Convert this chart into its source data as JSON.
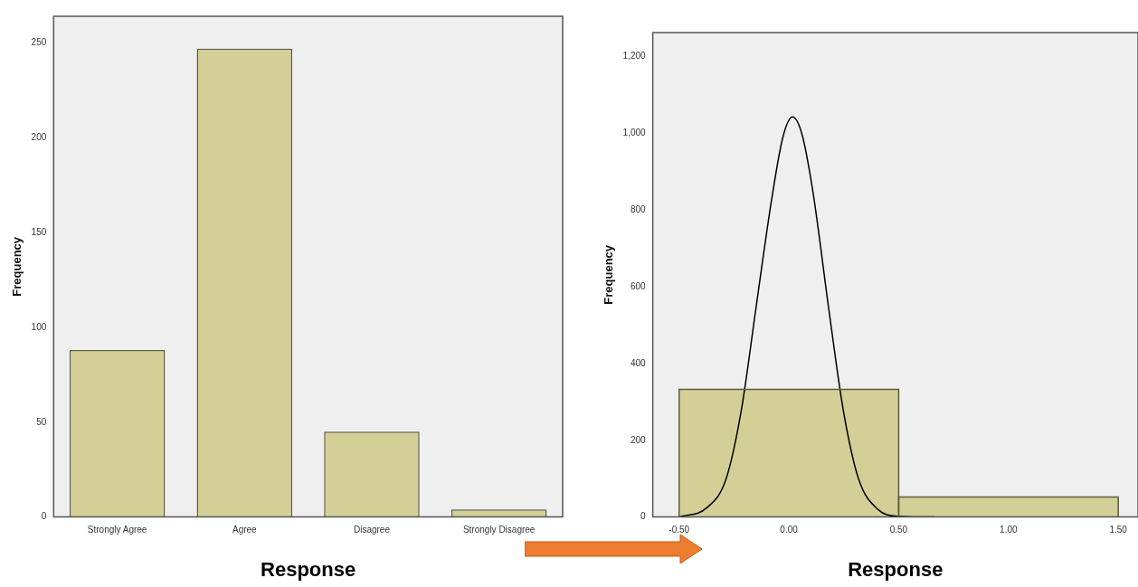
{
  "chart_data": [
    {
      "type": "bar",
      "xlabel": "Response",
      "ylabel": "Frequency",
      "categories": [
        "Strongly Agree",
        "Agree",
        "Disagree",
        "Strongly Disagree"
      ],
      "values": [
        88,
        247,
        45,
        4
      ],
      "color": "#d3cf96",
      "ylim": [
        0,
        264
      ],
      "yticks": [
        0,
        50,
        100,
        150,
        200,
        250
      ]
    },
    {
      "type": "histogram",
      "xlabel": "Response",
      "ylabel": "Frequency",
      "bins": [
        -0.5,
        0.5,
        1.5
      ],
      "values": [
        333,
        52
      ],
      "color": "#d3cf96",
      "xlim": [
        -0.62,
        1.59
      ],
      "xticks": [
        {
          "value": -0.5,
          "label": "-0.50"
        },
        {
          "value": 0,
          "label": "0.00"
        },
        {
          "value": 0.5,
          "label": "0.50"
        },
        {
          "value": 1,
          "label": "1.00"
        },
        {
          "value": 1.5,
          "label": "1.50"
        }
      ],
      "ylim": [
        0,
        1263
      ],
      "yticks": [
        0,
        200,
        400,
        600,
        800,
        {
          "value": 1000,
          "label": "1,000"
        },
        {
          "value": 1200,
          "label": "1,200"
        }
      ],
      "series": [
        {
          "type": "line",
          "color": "#000000",
          "x": [
            -0.5,
            -0.374,
            -0.287,
            -0.218,
            -0.149,
            -0.08,
            -0.028,
            0.016,
            0.059,
            0.111,
            0.18,
            0.249,
            0.318,
            0.405,
            0.491,
            0.664
          ],
          "values": [
            0,
            24,
            98,
            274,
            549,
            823,
            989,
            1043,
            999,
            842,
            549,
            274,
            98,
            20,
            2,
            0
          ]
        }
      ]
    }
  ]
}
